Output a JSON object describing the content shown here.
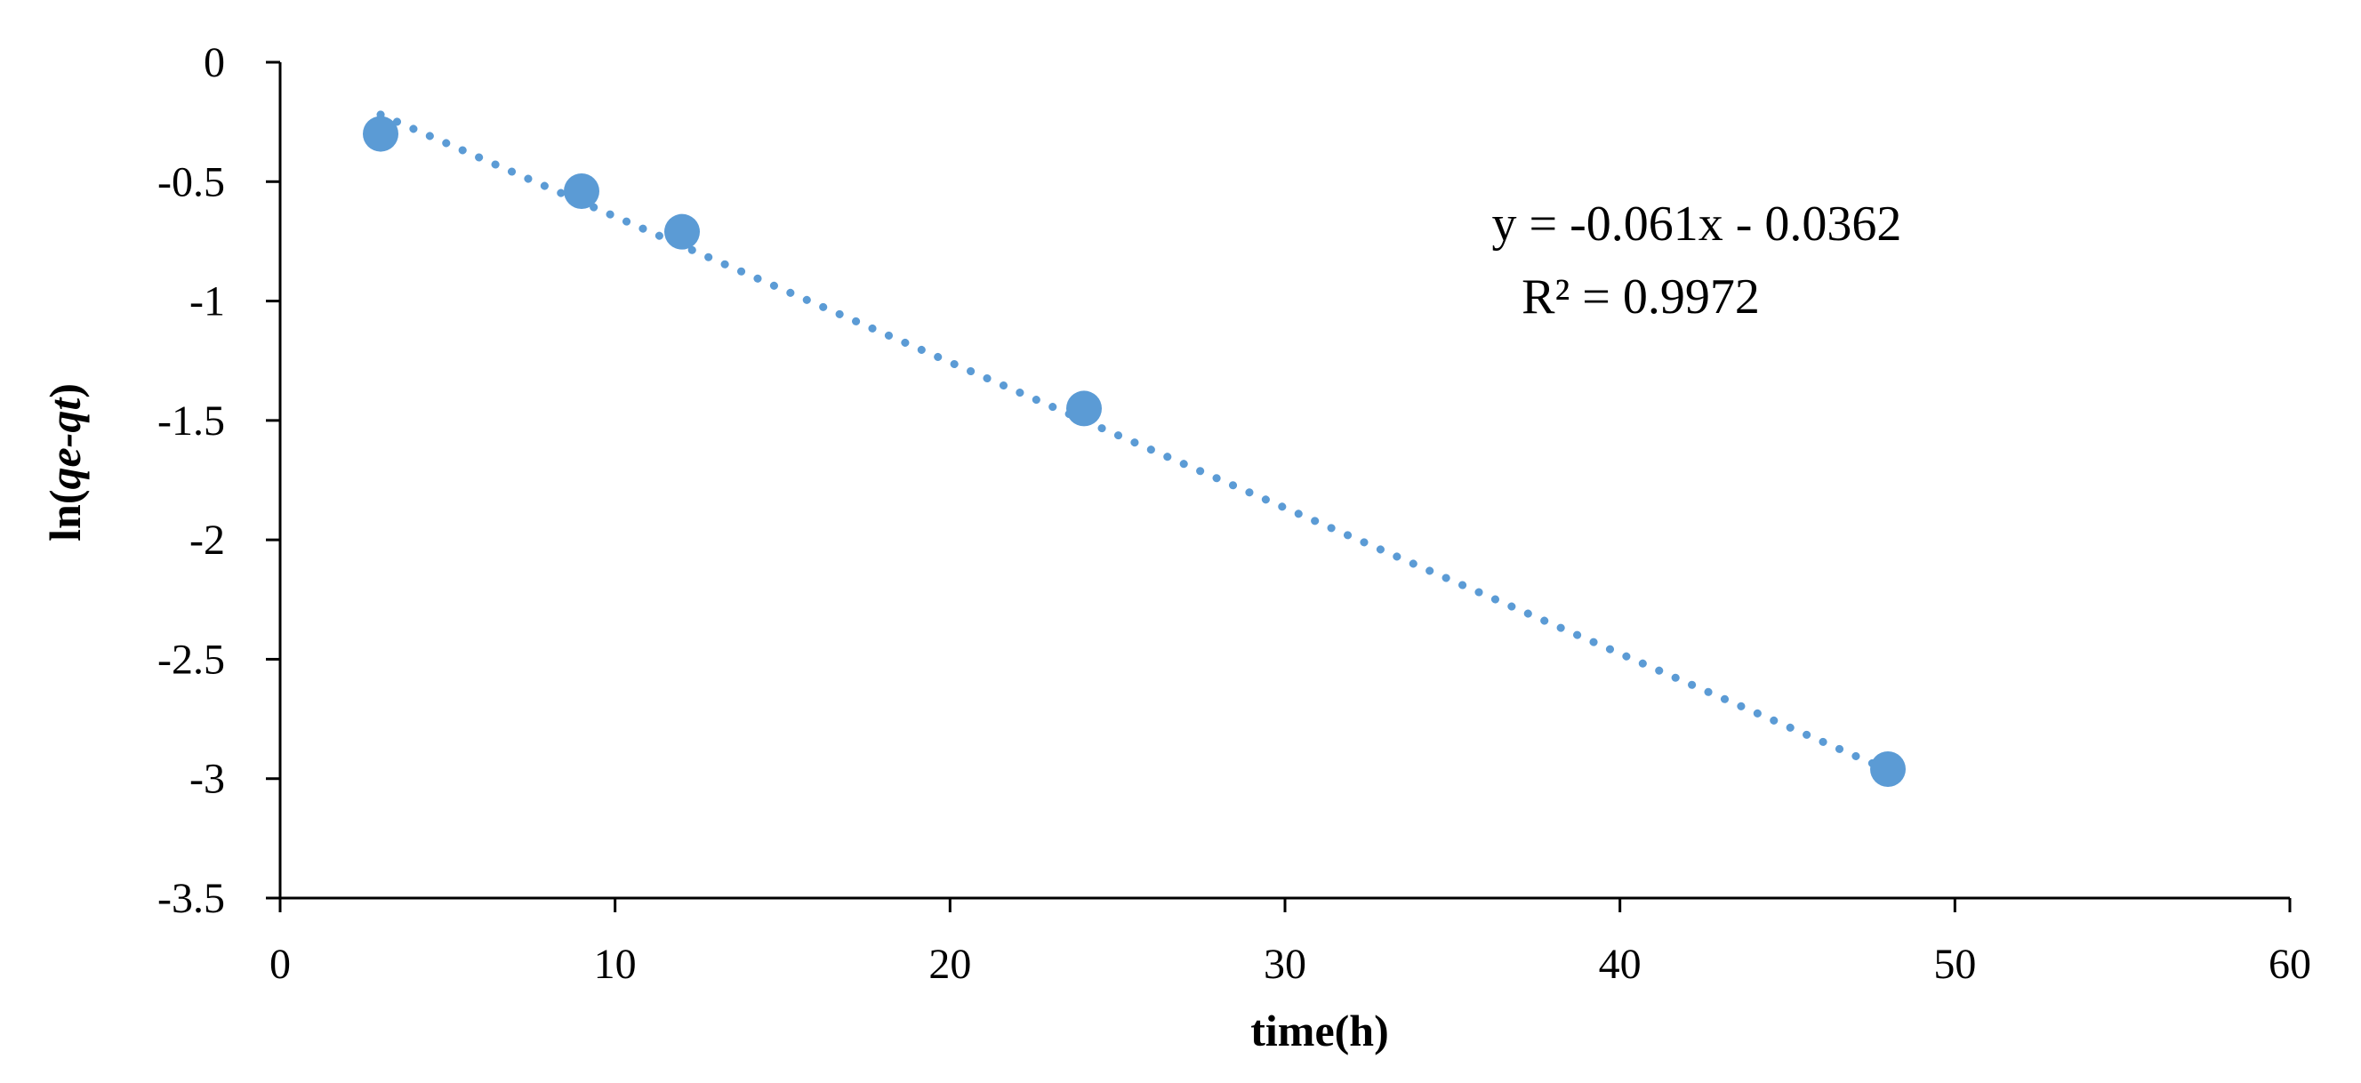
{
  "chart_data": {
    "type": "scatter",
    "title": "",
    "xlabel": "time(h)",
    "ylabel_parts": [
      "ln(",
      "qe-qt",
      ")"
    ],
    "xlim": [
      0,
      60
    ],
    "ylim": [
      -3.5,
      0
    ],
    "xticks": [
      0,
      10,
      20,
      30,
      40,
      50,
      60
    ],
    "yticks": [
      0,
      -0.5,
      -1,
      -1.5,
      -2,
      -2.5,
      -3,
      -3.5
    ],
    "grid": false,
    "legend": "none",
    "marker_color": "#5b9bd5",
    "trendline_color": "#5b9bd5",
    "series": [
      {
        "x": [
          3,
          9,
          12,
          24,
          48
        ],
        "y": [
          -0.3,
          -0.54,
          -0.71,
          -1.45,
          -2.96
        ]
      }
    ],
    "trendline": {
      "type": "linear",
      "slope": -0.061,
      "intercept": -0.0362,
      "x_range": [
        3,
        48
      ],
      "style": "dotted"
    },
    "annotations": [
      "y = -0.061x - 0.0362",
      "R² = 0.9972"
    ]
  }
}
